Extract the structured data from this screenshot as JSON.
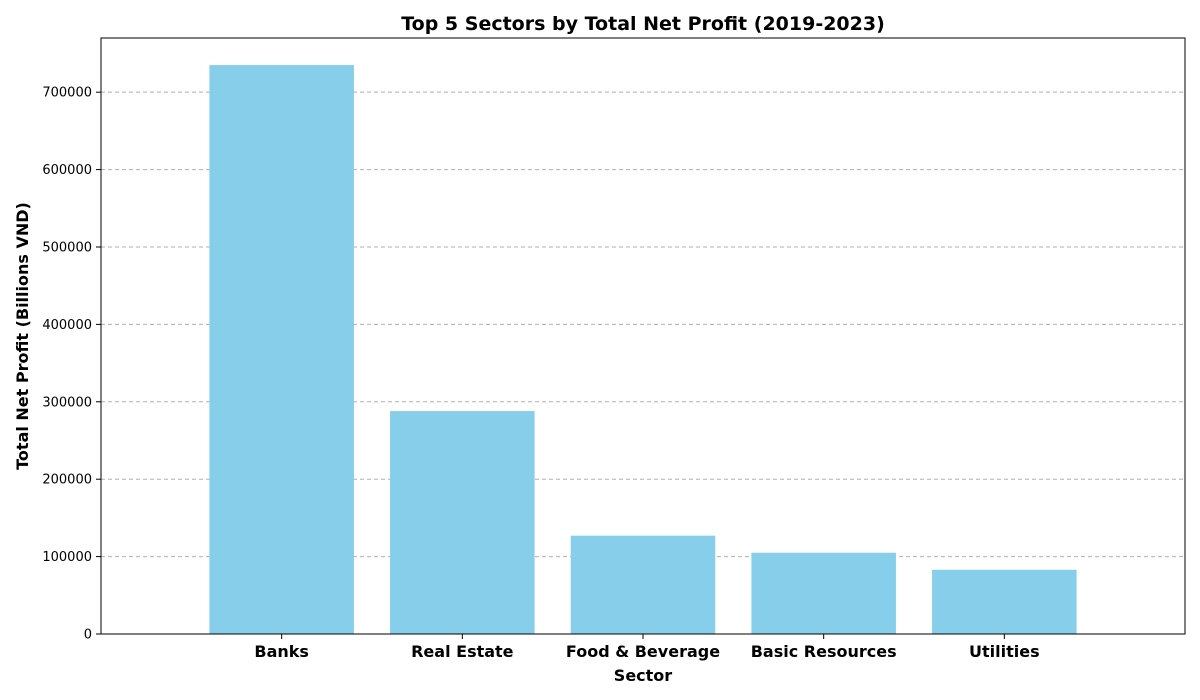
{
  "chart_data": {
    "type": "bar",
    "title": "Top 5 Sectors by Total Net Profit (2019-2023)",
    "xlabel": "Sector",
    "ylabel": "Total Net Profit (Billions VND)",
    "categories": [
      "Banks",
      "Real Estate",
      "Food & Beverage",
      "Basic Resources",
      "Utilities"
    ],
    "values": [
      735000,
      288000,
      127000,
      105000,
      83000
    ],
    "ylim": [
      0,
      770000
    ],
    "yticks": [
      0,
      100000,
      200000,
      300000,
      400000,
      500000,
      600000,
      700000
    ],
    "ytick_labels": [
      "0",
      "100000",
      "200000",
      "300000",
      "400000",
      "500000",
      "600000",
      "700000"
    ],
    "grid": "y-axis dashed",
    "bar_color": "#87CEEB"
  }
}
